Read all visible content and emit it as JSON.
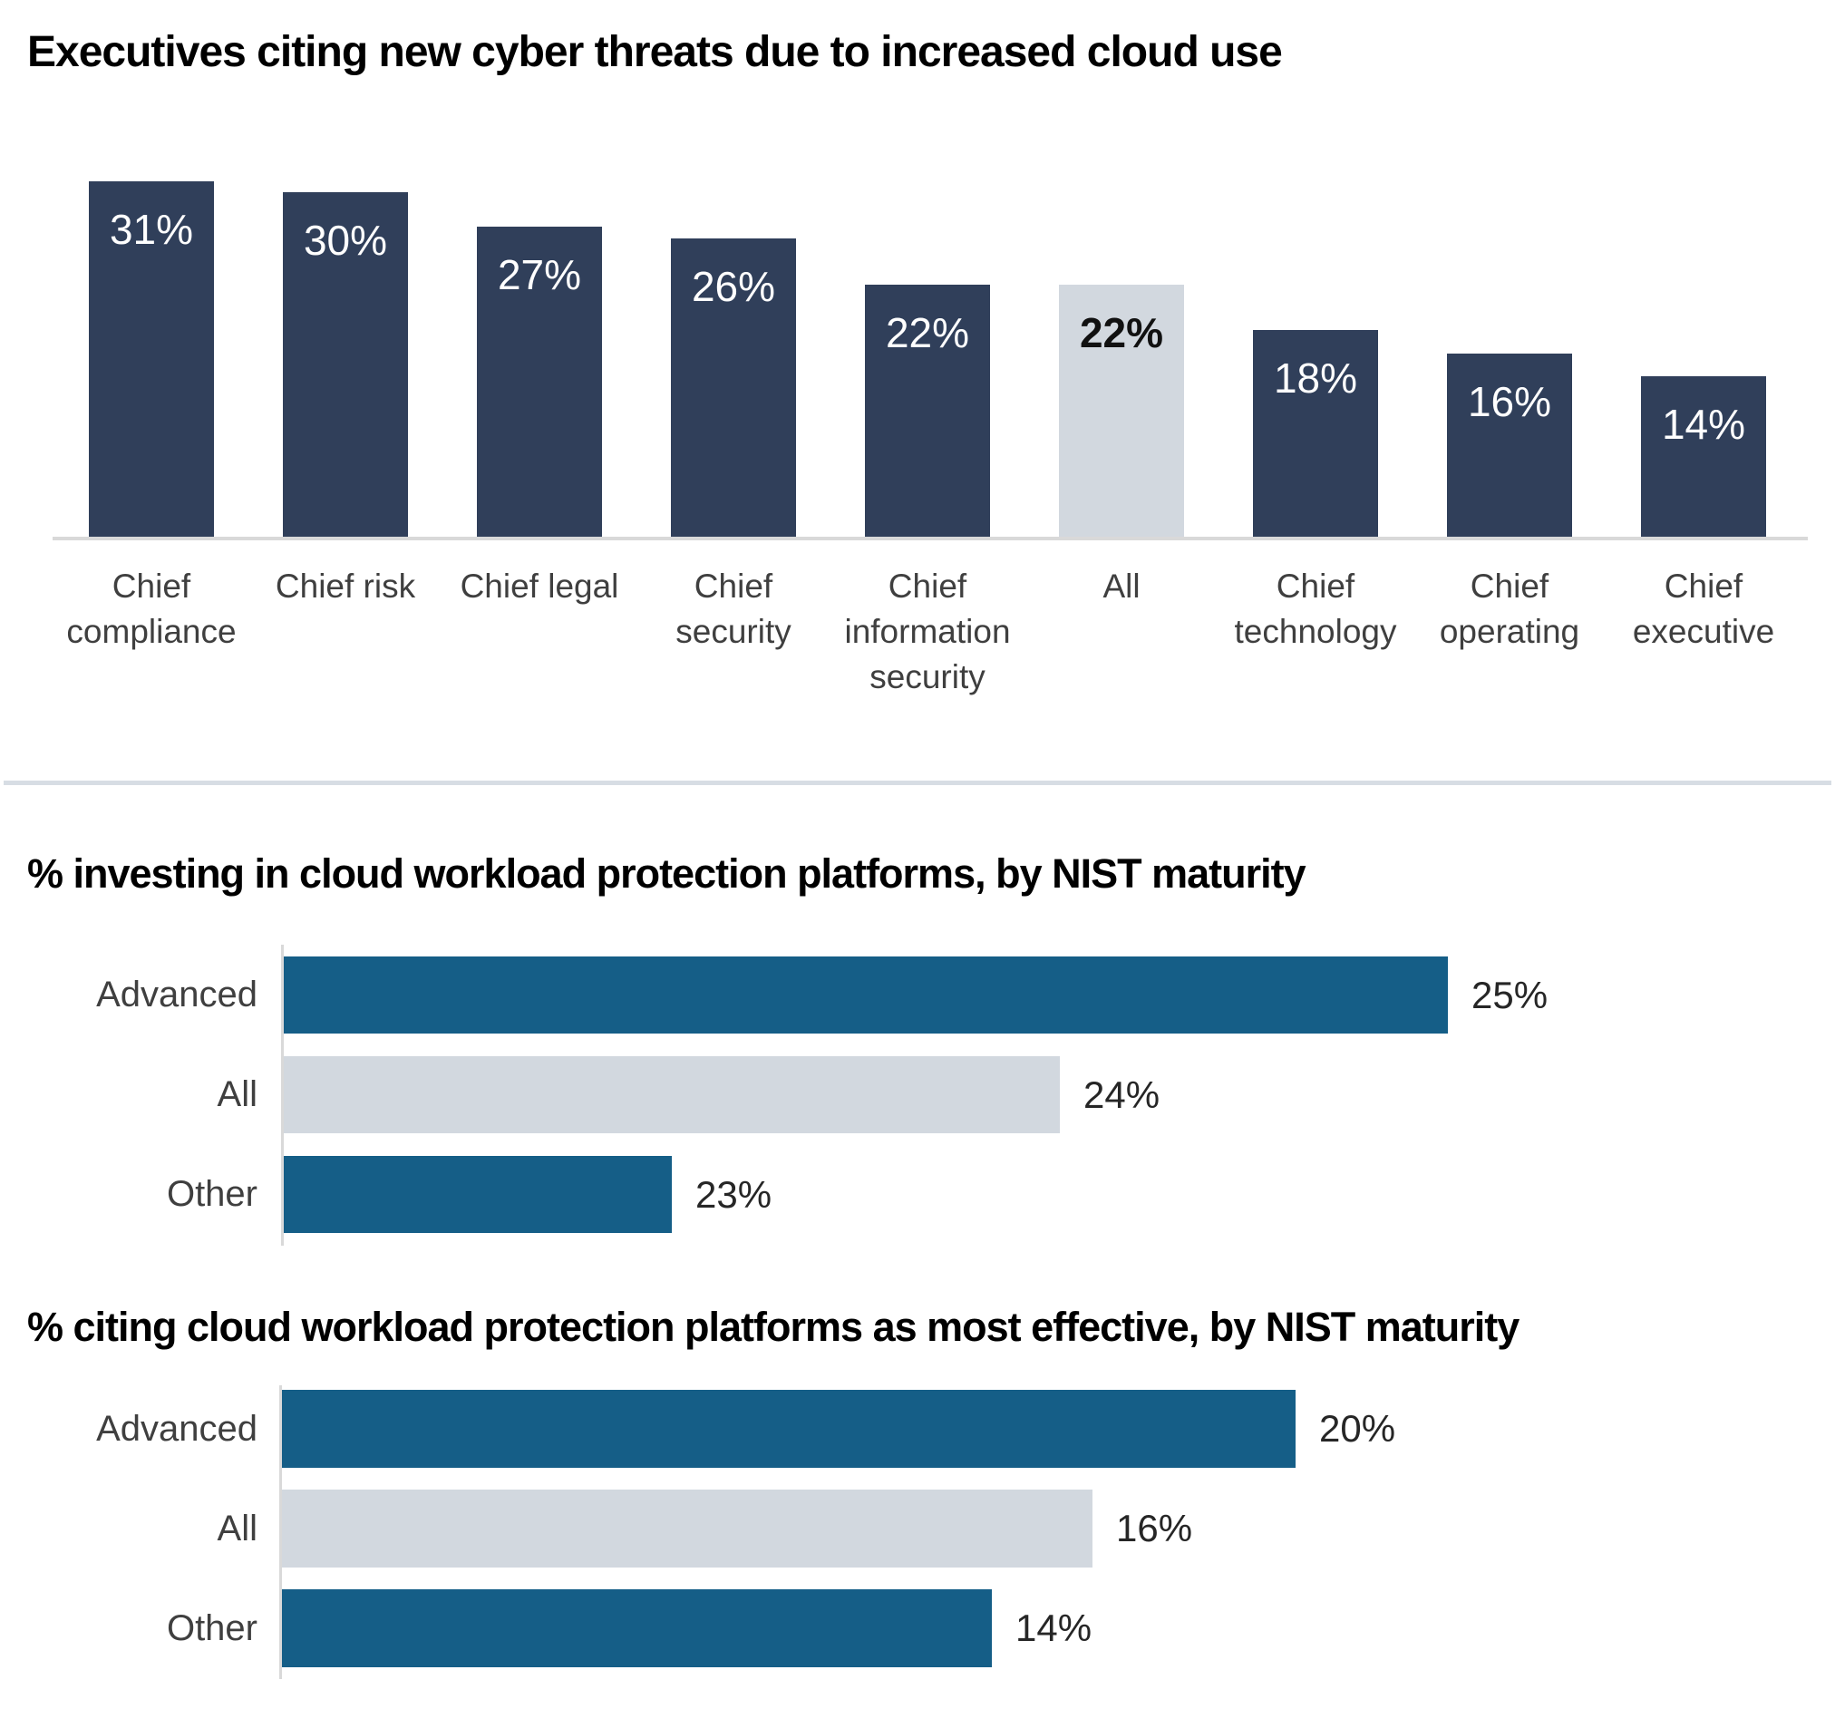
{
  "colors": {
    "navy": "#303F5A",
    "teal": "#155E87",
    "light_gray": "#D2D8DF",
    "axis_gray": "#D9D9D9",
    "divider": "#D7DDE4",
    "category_label_gray": "#3F3F3F",
    "value_label_dark": "#262626",
    "bar_label_white": "#FFFFFF"
  },
  "chart_data": [
    {
      "type": "bar",
      "orientation": "vertical",
      "title": "Executives citing new cyber threats due to increased cloud use",
      "categories": [
        "Chief compliance",
        "Chief risk",
        "Chief legal",
        "Chief security",
        "Chief information security",
        "All",
        "Chief technology",
        "Chief operating",
        "Chief executive"
      ],
      "values": [
        31,
        30,
        27,
        26,
        22,
        22,
        18,
        16,
        14
      ],
      "data_labels": [
        "31%",
        "30%",
        "27%",
        "26%",
        "22%",
        "22%",
        "18%",
        "16%",
        "14%"
      ],
      "highlight_index": 5,
      "highlighted_category": "All",
      "ylim": [
        0,
        33
      ],
      "gridlines": false,
      "legend": "none",
      "xlabel": "",
      "ylabel": ""
    },
    {
      "type": "bar",
      "orientation": "horizontal",
      "title": "% investing in cloud workload protection platforms, by NIST maturity",
      "categories": [
        "Advanced",
        "All",
        "Other"
      ],
      "values": [
        25,
        24,
        23
      ],
      "data_labels": [
        "25%",
        "24%",
        "23%"
      ],
      "highlight_index": 1,
      "highlighted_category": "All",
      "xlim": [
        22,
        26
      ],
      "gridlines": false,
      "legend": "none",
      "xlabel": "",
      "ylabel": ""
    },
    {
      "type": "bar",
      "orientation": "horizontal",
      "title": "% citing cloud workload protection platforms as most effective, by NIST maturity",
      "categories": [
        "Advanced",
        "All",
        "Other"
      ],
      "values": [
        20,
        16,
        14
      ],
      "data_labels": [
        "20%",
        "16%",
        "14%"
      ],
      "highlight_index": 1,
      "highlighted_category": "All",
      "xlim": [
        0,
        31
      ],
      "gridlines": false,
      "legend": "none",
      "xlabel": "",
      "ylabel": ""
    }
  ]
}
